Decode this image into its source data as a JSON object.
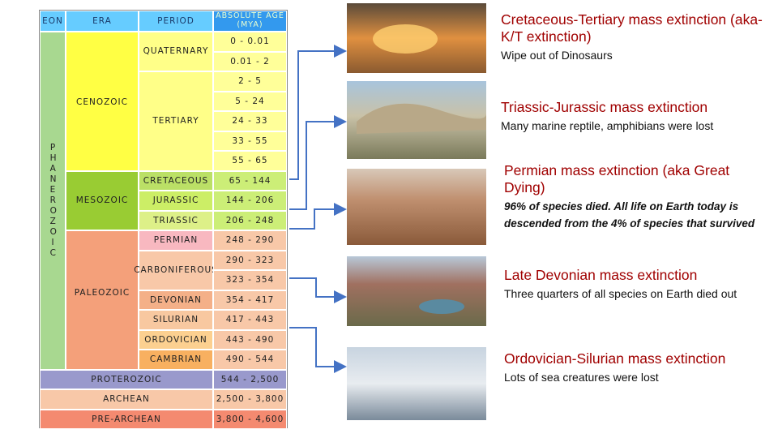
{
  "table": {
    "headers": [
      "EON",
      "ERA",
      "PERIOD",
      "ABSOLUTE AGE (MYA)"
    ],
    "eon": "PHANEROZOIC",
    "eras": [
      "CENOZOIC",
      "MESOZOIC",
      "PALEOZOIC"
    ],
    "periods": [
      "QUATERNARY",
      "TERTIARY",
      "CRETACEOUS",
      "JURASSIC",
      "TRIASSIC",
      "PERMIAN",
      "CARBONIFEROUS",
      "DEVONIAN",
      "SILURIAN",
      "ORDOVICIAN",
      "CAMBRIAN"
    ],
    "precambrian": [
      "PROTEROZOIC",
      "ARCHEAN",
      "PRE-ARCHEAN"
    ],
    "ages": [
      "0 - 0.01",
      "0.01 - 2",
      "2 - 5",
      "5 - 24",
      "24 - 33",
      "33 - 55",
      "55 - 65",
      "65 - 144",
      "144 - 206",
      "206 - 248",
      "248 - 290",
      "290 - 323",
      "323 - 354",
      "354 - 417",
      "417 - 443",
      "443 - 490",
      "490 - 544",
      "544 - 2,500",
      "2,500 - 3,800",
      "3,800 - 4,600"
    ]
  },
  "extinctions": [
    {
      "title": "Cretaceous-Tertiary mass extinction (aka- K/T extinction)",
      "description": "Wipe out of Dinosaurs"
    },
    {
      "title": "Triassic-Jurassic mass extinction",
      "description": "Many marine reptile, amphibians were lost"
    },
    {
      "title": "Permian mass extinction (aka Great Dying)",
      "description": "96% of species died. All life on Earth today is descended from the 4% of species that survived"
    },
    {
      "title": "Late Devonian mass extinction",
      "description": "Three quarters of all species on Earth died out"
    },
    {
      "title": "Ordovician-Silurian mass extinction",
      "description": "Lots of sea creatures were lost"
    }
  ]
}
